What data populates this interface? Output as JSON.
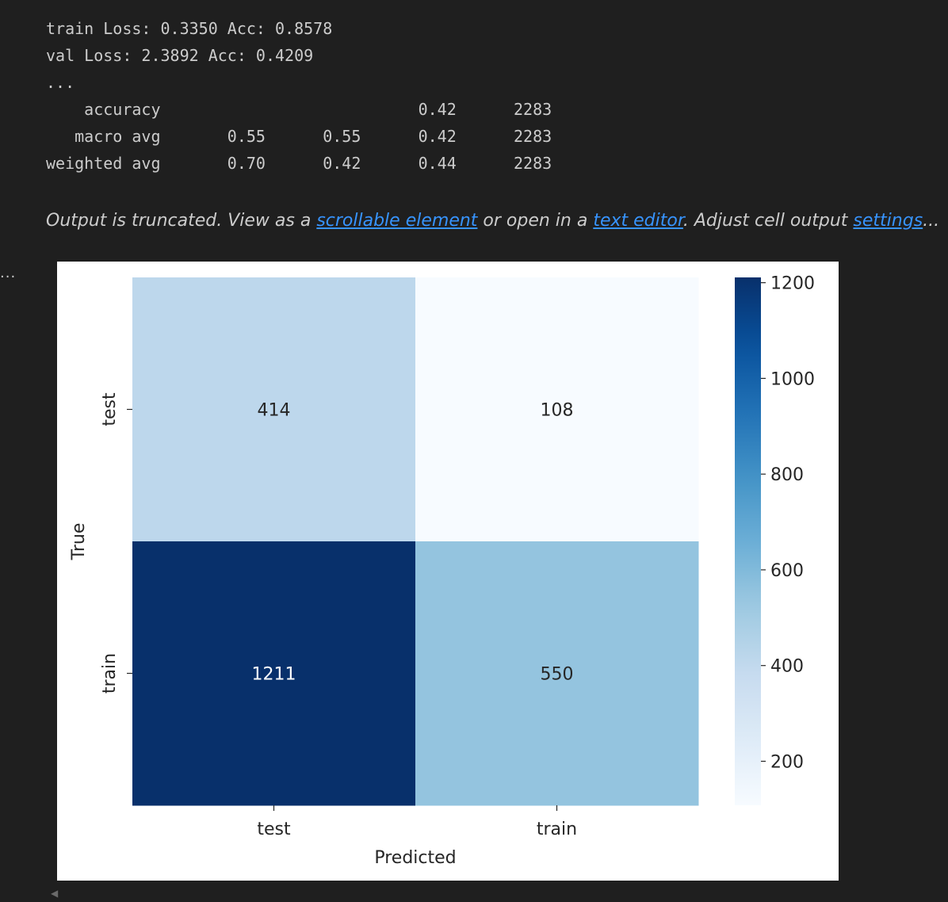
{
  "text_output": {
    "separator": "----------",
    "lines": [
      "train Loss: 0.3350 Acc: 0.8578",
      "val Loss: 2.3892 Acc: 0.4209",
      "...",
      "    accuracy                           0.42      2283",
      "   macro avg       0.55      0.55      0.42      2283",
      "weighted avg       0.70      0.42      0.44      2283"
    ]
  },
  "truncation": {
    "prefix": "Output is truncated. View as a ",
    "scrollable_link": "scrollable element",
    "middle": " or open in a ",
    "editor_link": "text editor",
    "middle2": ". Adjust cell output ",
    "settings_link": "settings",
    "suffix": "..."
  },
  "cell_marker": "...",
  "colors": {
    "background": "#1f1f1f",
    "text": "#cccccc",
    "link": "#3794ff",
    "figure_bg": "#ffffff"
  },
  "chart_data": {
    "type": "heatmap",
    "title": "",
    "xlabel": "Predicted",
    "ylabel": "True",
    "x_categories": [
      "test",
      "train"
    ],
    "y_categories": [
      "test",
      "train"
    ],
    "values": [
      [
        414,
        108
      ],
      [
        1211,
        550
      ]
    ],
    "colormap": "Blues",
    "colorbar": {
      "vmin": 108,
      "vmax": 1211,
      "ticks": [
        200,
        400,
        600,
        800,
        1000,
        1200
      ]
    },
    "annotations": true
  }
}
